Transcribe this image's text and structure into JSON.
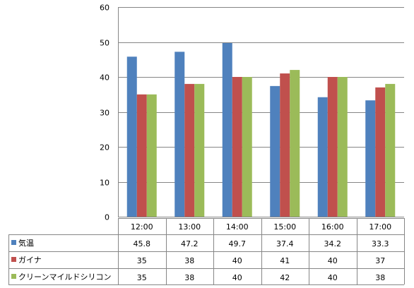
{
  "chart_data": {
    "type": "bar",
    "categories": [
      "12:00",
      "13:00",
      "14:00",
      "15:00",
      "16:00",
      "17:00"
    ],
    "series": [
      {
        "name": "気温",
        "color": "#4f81bd",
        "values": [
          45.8,
          47.2,
          49.7,
          37.4,
          34.2,
          33.3
        ]
      },
      {
        "name": "ガイナ",
        "color": "#c0504d",
        "values": [
          35,
          38,
          40,
          41,
          40,
          37
        ]
      },
      {
        "name": "クリーンマイルドシリコン",
        "color": "#9bbb59",
        "values": [
          35,
          38,
          40,
          42,
          40,
          38
        ]
      }
    ],
    "ylim": [
      0,
      60
    ],
    "yticks": [
      0,
      10,
      20,
      30,
      40,
      50,
      60
    ],
    "grid": true,
    "legend": "data-table-below"
  }
}
